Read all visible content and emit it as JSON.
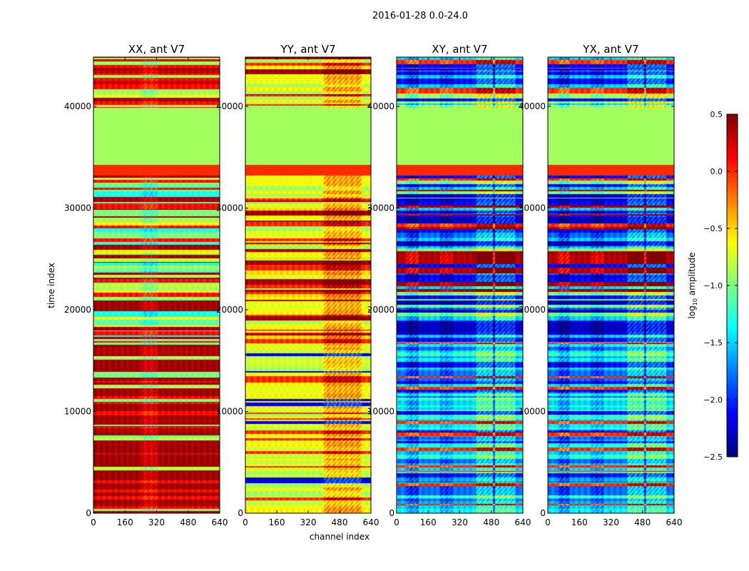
{
  "chart_data": {
    "type": "heatmap",
    "suptitle": "2016-01-28 0.0-24.0",
    "xlabel": "channel index",
    "ylabel": "time index",
    "xlim": [
      0,
      640
    ],
    "ylim": [
      0,
      44840
    ],
    "xticks": [
      "0",
      "160",
      "320",
      "480",
      "640"
    ],
    "yticks": [
      "0",
      "10000",
      "20000",
      "30000",
      "40000"
    ],
    "colorbar": {
      "label": "log10 amplitude",
      "label_base": "log",
      "label_sub": "10",
      "label_rest": " amplitude",
      "range": [
        -2.5,
        0.5
      ],
      "ticks": [
        "0.5",
        "0.0",
        "−0.5",
        "−1.0",
        "−1.5",
        "−2.0",
        "−2.5"
      ],
      "colormap": "jet"
    },
    "common_bands": [
      {
        "from": 33260,
        "to": 34315,
        "level": 0.0
      },
      {
        "from": 34315,
        "to": 39930,
        "level": -0.9
      }
    ],
    "panels": [
      {
        "title": "XX, ant V7",
        "low_levels": [
          0.4,
          0.4,
          0.4,
          0.35,
          0.1,
          -0.8,
          -1.0,
          0.4
        ],
        "mid_levels": [
          0.4,
          -0.9,
          -1.1,
          -1.3,
          0.1,
          -0.8,
          -0.6,
          0.4,
          -1.0
        ],
        "top_levels": [
          0.4,
          0.3,
          -0.9,
          0.1,
          -0.7
        ],
        "channel_mods": [
          {
            "from": 240,
            "to": 320,
            "delta": -0.25
          }
        ]
      },
      {
        "title": "YY, ant V7",
        "low_levels": [
          -0.7,
          -0.65,
          -0.8,
          -0.9,
          -0.6,
          0.0,
          -0.75,
          -2.2
        ],
        "mid_levels": [
          -0.7,
          -0.6,
          0.35,
          0.4,
          -0.9,
          0.0,
          -0.65,
          -0.5
        ],
        "top_levels": [
          -0.7,
          -0.6,
          0.4,
          -0.9,
          0.0
        ],
        "channel_mods": [
          {
            "from": 400,
            "to": 590,
            "delta": 0.5
          }
        ]
      },
      {
        "title": "XY, ant V7",
        "low_levels": [
          -1.4,
          -1.5,
          -1.6,
          -1.3,
          -1.8,
          0.0,
          -2.1,
          -1.2
        ],
        "mid_levels": [
          0.4,
          0.35,
          -2.1,
          -2.2,
          -1.8,
          -1.0,
          0.0,
          -2.3,
          -1.5
        ],
        "top_levels": [
          -1.3,
          -1.5,
          -2.1,
          0.0,
          -0.9
        ],
        "channel_mods": [
          {
            "from": 50,
            "to": 110,
            "delta": -0.4
          },
          {
            "from": 220,
            "to": 280,
            "delta": -0.3
          },
          {
            "from": 400,
            "to": 600,
            "delta": 0.5
          },
          {
            "from": 488,
            "to": 496,
            "delta": -1.0
          }
        ]
      },
      {
        "title": "YX, ant V7",
        "low_levels": [
          -1.4,
          -1.5,
          -1.6,
          -1.3,
          -1.8,
          0.0,
          -2.1,
          -1.2
        ],
        "mid_levels": [
          0.4,
          0.35,
          -2.1,
          -2.2,
          -1.8,
          -1.0,
          0.0,
          -2.3,
          -1.5
        ],
        "top_levels": [
          -1.3,
          -1.5,
          -2.1,
          0.0,
          -0.9
        ],
        "channel_mods": [
          {
            "from": 50,
            "to": 110,
            "delta": -0.4
          },
          {
            "from": 220,
            "to": 280,
            "delta": -0.3
          },
          {
            "from": 400,
            "to": 600,
            "delta": 0.5
          },
          {
            "from": 488,
            "to": 496,
            "delta": -1.0
          }
        ]
      }
    ]
  }
}
